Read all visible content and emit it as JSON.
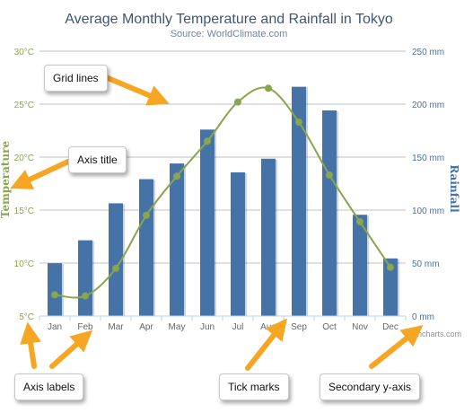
{
  "chart_data": {
    "type": "bar",
    "title": "Average Monthly Temperature and Rainfall in Tokyo",
    "subtitle": "Source: WorldClimate.com",
    "categories": [
      "Jan",
      "Feb",
      "Mar",
      "Apr",
      "May",
      "Jun",
      "Jul",
      "Aug",
      "Sep",
      "Oct",
      "Nov",
      "Dec"
    ],
    "series": [
      {
        "name": "Rainfall",
        "type": "bar",
        "axis": "right",
        "color": "#4572a7",
        "values": [
          49.9,
          71.5,
          106.4,
          129.2,
          144.0,
          176.0,
          135.6,
          148.5,
          216.4,
          194.1,
          95.6,
          54.4
        ]
      },
      {
        "name": "Temperature",
        "type": "line",
        "axis": "left",
        "color": "#89a54e",
        "values": [
          7.0,
          6.9,
          9.5,
          14.5,
          18.2,
          21.5,
          25.2,
          26.5,
          23.3,
          18.3,
          13.9,
          9.6
        ]
      }
    ],
    "y_left": {
      "label": "Temperature",
      "min": 5,
      "max": 30,
      "ticks": [
        "5°C",
        "10°C",
        "15°C",
        "20°C",
        "25°C",
        "30°C"
      ]
    },
    "y_right": {
      "label": "Rainfall",
      "min": 0,
      "max": 250,
      "ticks": [
        "0 mm",
        "50 mm",
        "100 mm",
        "150 mm",
        "200 mm",
        "250 mm"
      ]
    },
    "grid": true,
    "legend": "none",
    "credits": "Highcharts.com"
  },
  "annotations": {
    "grid_lines": "Grid lines",
    "axis_title": "Axis title",
    "axis_labels": "Axis labels",
    "tick_marks": "Tick marks",
    "secondary_y_axis": "Secondary y-axis"
  },
  "colors": {
    "arrow": "#f5a623",
    "grid": "#c0c0c0"
  }
}
